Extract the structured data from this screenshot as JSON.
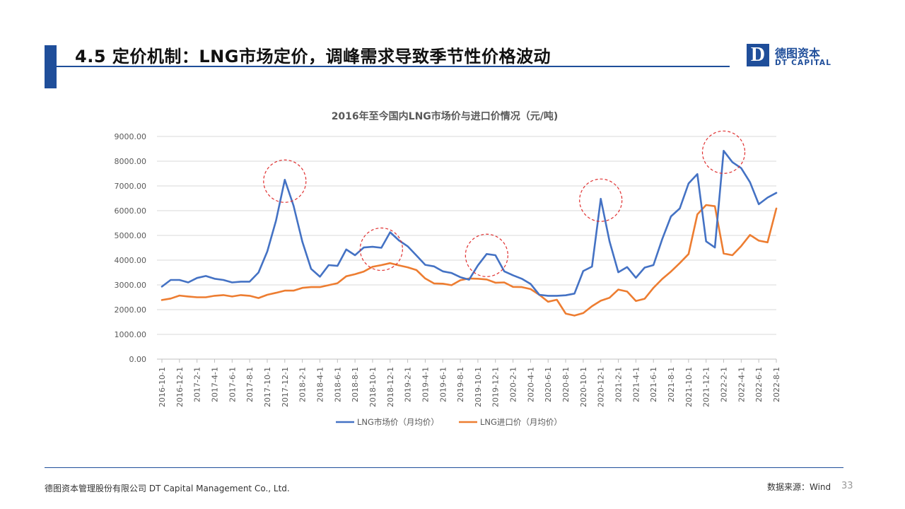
{
  "slide": {
    "title": "4.5 定价机制：LNG市场定价，调峰需求导致季节性价格波动",
    "logo_cn": "德图资本",
    "logo_en": "DT CAPITAL",
    "logo_letter": "D",
    "footer_company": "德图资本管理股份有限公司 DT Capital Management Co., Ltd.",
    "source": "数据来源：Wind",
    "page_number": "33"
  },
  "colors": {
    "brand": "#1f4e9a",
    "market_series": "#4472c4",
    "import_series": "#ed7d31",
    "highlight_circle": "#e03030"
  },
  "chart_data": {
    "type": "line",
    "title": "2016年至今国内LNG市场价与进口价情况（元/吨)",
    "xlabel": "",
    "ylabel": "",
    "ylim": [
      0,
      9000
    ],
    "yticks": [
      "9000.00",
      "8000.00",
      "7000.00",
      "6000.00",
      "5000.00",
      "4000.00",
      "3000.00",
      "2000.00",
      "1000.00",
      "0.00"
    ],
    "grid": true,
    "legend_position": "bottom",
    "x": [
      "2016-10-1",
      "2016-11-1",
      "2016-12-1",
      "2017-1-1",
      "2017-2-1",
      "2017-3-1",
      "2017-4-1",
      "2017-5-1",
      "2017-6-1",
      "2017-7-1",
      "2017-8-1",
      "2017-9-1",
      "2017-10-1",
      "2017-11-1",
      "2017-12-1",
      "2018-1-1",
      "2018-2-1",
      "2018-3-1",
      "2018-4-1",
      "2018-5-1",
      "2018-6-1",
      "2018-7-1",
      "2018-8-1",
      "2018-9-1",
      "2018-10-1",
      "2018-11-1",
      "2018-12-1",
      "2019-1-1",
      "2019-2-1",
      "2019-3-1",
      "2019-4-1",
      "2019-5-1",
      "2019-6-1",
      "2019-7-1",
      "2019-8-1",
      "2019-9-1",
      "2019-10-1",
      "2019-11-1",
      "2019-12-1",
      "2020-1-1",
      "2020-2-1",
      "2020-3-1",
      "2020-4-1",
      "2020-5-1",
      "2020-6-1",
      "2020-7-1",
      "2020-8-1",
      "2020-9-1",
      "2020-10-1",
      "2020-11-1",
      "2020-12-1",
      "2021-1-1",
      "2021-2-1",
      "2021-3-1",
      "2021-4-1",
      "2021-5-1",
      "2021-6-1",
      "2021-7-1",
      "2021-8-1",
      "2021-9-1",
      "2021-10-1",
      "2021-11-1",
      "2021-12-1",
      "2022-1-1",
      "2022-2-1",
      "2022-3-1",
      "2022-4-1",
      "2022-5-1",
      "2022-6-1",
      "2022-7-1",
      "2022-8-1"
    ],
    "x_tick_labels": [
      "2016-10-1",
      "2016-12-1",
      "2017-2-1",
      "2017-4-1",
      "2017-6-1",
      "2017-8-1",
      "2017-10-1",
      "2017-12-1",
      "2018-2-1",
      "2018-4-1",
      "2018-6-1",
      "2018-8-1",
      "2018-10-1",
      "2018-12-1",
      "2019-2-1",
      "2019-4-1",
      "2019-6-1",
      "2019-8-1",
      "2019-10-1",
      "2019-12-1",
      "2020-2-1",
      "2020-4-1",
      "2020-6-1",
      "2020-8-1",
      "2020-10-1",
      "2020-12-1",
      "2021-2-1",
      "2021-4-1",
      "2021-6-1",
      "2021-8-1",
      "2021-10-1",
      "2021-12-1",
      "2022-2-1",
      "2022-4-1",
      "2022-6-1",
      "2022-8-1"
    ],
    "series": [
      {
        "name": "LNG市场价（月均价）",
        "values": [
          2930,
          3200,
          3200,
          3100,
          3280,
          3360,
          3250,
          3200,
          3100,
          3130,
          3130,
          3500,
          4350,
          5600,
          7250,
          6200,
          4750,
          3650,
          3330,
          3800,
          3770,
          4430,
          4200,
          4510,
          4540,
          4500,
          5130,
          4800,
          4560,
          4190,
          3810,
          3750,
          3550,
          3480,
          3310,
          3210,
          3790,
          4250,
          4200,
          3550,
          3390,
          3250,
          3040,
          2600,
          2560,
          2560,
          2580,
          2650,
          3560,
          3740,
          6480,
          4760,
          3510,
          3720,
          3290,
          3700,
          3800,
          4850,
          5770,
          6090,
          7100,
          7480,
          4760,
          4510,
          8420,
          7960,
          7720,
          7150,
          6260,
          6530,
          6720
        ]
      },
      {
        "name": "LNG进口价（月均价）",
        "values": [
          2390,
          2450,
          2570,
          2530,
          2500,
          2500,
          2560,
          2590,
          2530,
          2590,
          2560,
          2470,
          2600,
          2680,
          2770,
          2770,
          2880,
          2910,
          2910,
          2990,
          3070,
          3350,
          3430,
          3540,
          3730,
          3800,
          3880,
          3790,
          3710,
          3600,
          3260,
          3060,
          3050,
          2990,
          3190,
          3260,
          3250,
          3220,
          3090,
          3100,
          2920,
          2910,
          2830,
          2600,
          2320,
          2400,
          1840,
          1760,
          1860,
          2140,
          2360,
          2480,
          2810,
          2730,
          2350,
          2440,
          2880,
          3240,
          3540,
          3880,
          4250,
          5850,
          6230,
          6180,
          4270,
          4200,
          4570,
          5020,
          4790,
          4720,
          6090
        ]
      }
    ],
    "highlight_circles_at": [
      "2017-12-1",
      "2018-11-1",
      "2019-11-1",
      "2020-12-1",
      "2022-2-1"
    ]
  }
}
